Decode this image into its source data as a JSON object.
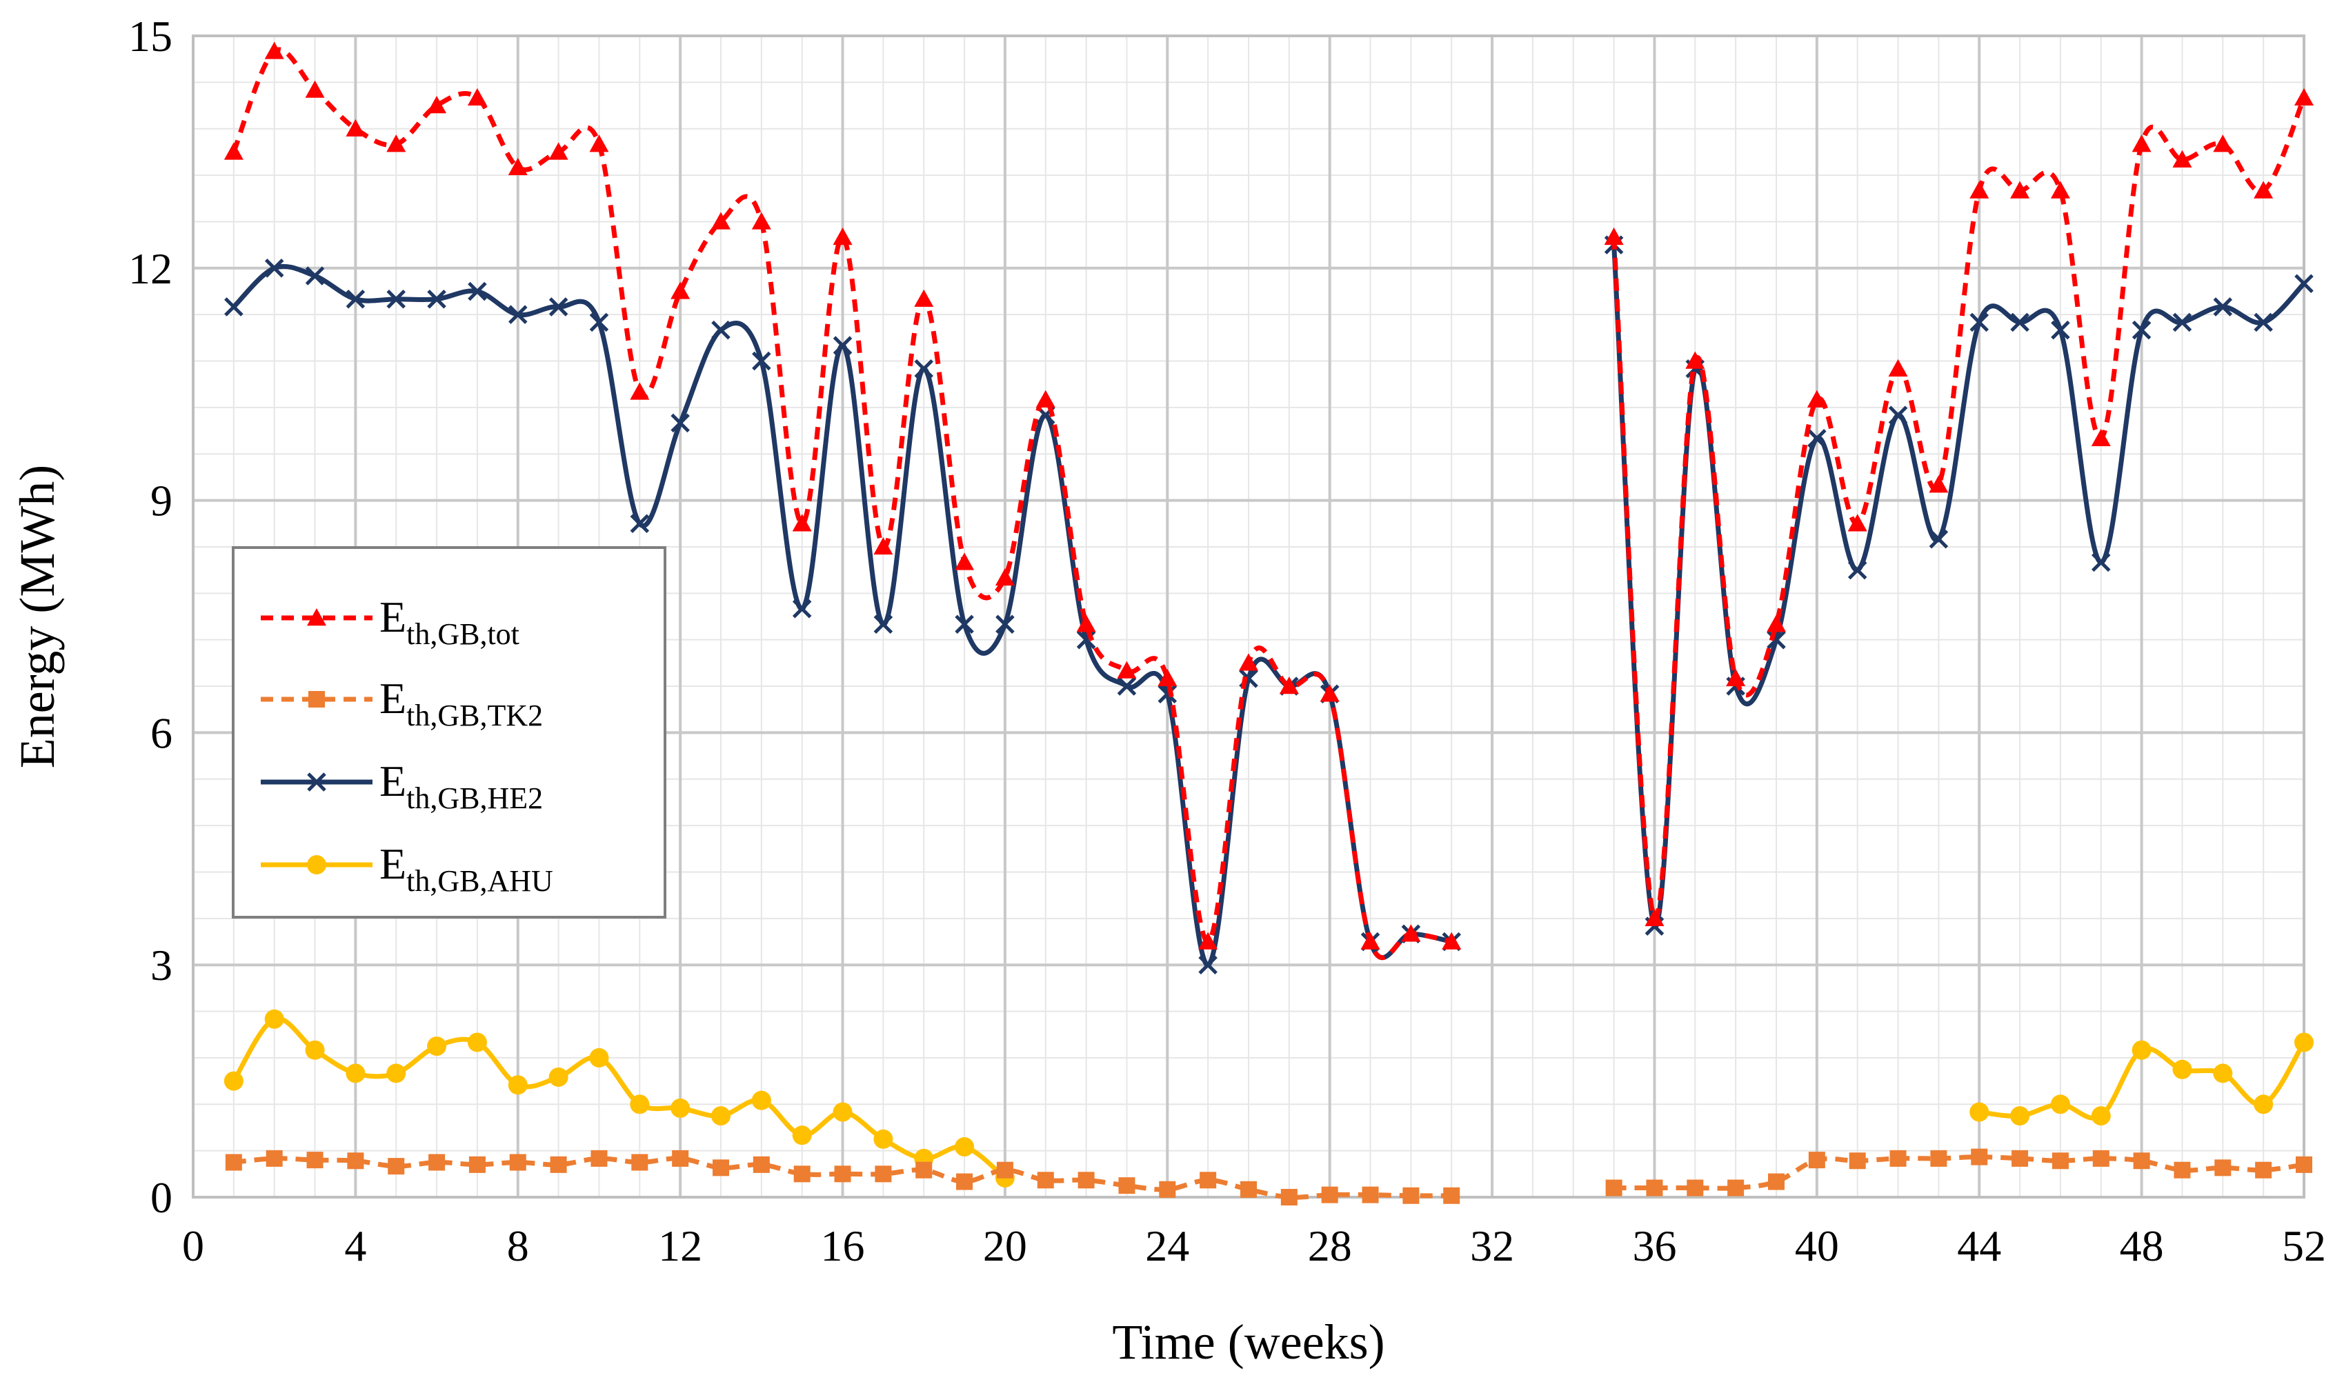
{
  "chart_data": {
    "type": "line",
    "title": "",
    "xlabel": "Time (weeks)",
    "ylabel": "Energy (MWh)",
    "xlim": [
      0,
      52
    ],
    "ylim": [
      0,
      15
    ],
    "xticks": [
      0,
      4,
      8,
      12,
      16,
      20,
      24,
      28,
      32,
      36,
      40,
      44,
      48,
      52
    ],
    "yticks": [
      0,
      3,
      6,
      9,
      12,
      15
    ],
    "x_minor_step": 1,
    "y_minor_step": 0.6,
    "grid": true,
    "legend_position": "middle-left",
    "series": [
      {
        "name": "E_th,GB,tot",
        "legend_main": "E",
        "legend_sub": "th,GB,tot",
        "color": "#ff0000",
        "line": "dashed",
        "marker": "triangle",
        "x": [
          1,
          2,
          3,
          4,
          5,
          6,
          7,
          8,
          9,
          10,
          11,
          12,
          13,
          14,
          15,
          16,
          17,
          18,
          19,
          20,
          21,
          22,
          23,
          24,
          25,
          26,
          27,
          28,
          29,
          30,
          31,
          null,
          35,
          36,
          37,
          38,
          39,
          40,
          41,
          42,
          43,
          44,
          45,
          46,
          47,
          48,
          49,
          50,
          51,
          52
        ],
        "y": [
          13.5,
          14.8,
          14.3,
          13.8,
          13.6,
          14.1,
          14.2,
          13.3,
          13.5,
          13.6,
          10.4,
          11.7,
          12.6,
          12.6,
          8.7,
          12.4,
          8.4,
          11.6,
          8.2,
          8.0,
          10.3,
          7.4,
          6.8,
          6.7,
          3.3,
          6.9,
          6.6,
          6.5,
          3.3,
          3.4,
          3.3,
          null,
          12.4,
          3.6,
          10.8,
          6.7,
          7.4,
          10.3,
          8.7,
          10.7,
          9.2,
          13.0,
          13.0,
          13.0,
          9.8,
          13.6,
          13.4,
          13.6,
          13.0,
          14.2
        ]
      },
      {
        "name": "E_th,GB,TK2",
        "legend_main": "E",
        "legend_sub": "th,GB,TK2",
        "color": "#ed7d31",
        "line": "dashed",
        "marker": "square",
        "x": [
          1,
          2,
          3,
          4,
          5,
          6,
          7,
          8,
          9,
          10,
          11,
          12,
          13,
          14,
          15,
          16,
          17,
          18,
          19,
          20,
          21,
          22,
          23,
          24,
          25,
          26,
          27,
          28,
          29,
          30,
          31,
          null,
          35,
          36,
          37,
          38,
          39,
          40,
          41,
          42,
          43,
          44,
          45,
          46,
          47,
          48,
          49,
          50,
          51,
          52
        ],
        "y": [
          0.45,
          0.5,
          0.48,
          0.47,
          0.4,
          0.45,
          0.42,
          0.45,
          0.42,
          0.5,
          0.45,
          0.5,
          0.38,
          0.42,
          0.3,
          0.3,
          0.3,
          0.35,
          0.2,
          0.35,
          0.22,
          0.22,
          0.15,
          0.1,
          0.22,
          0.1,
          0.0,
          0.03,
          0.03,
          0.02,
          0.02,
          null,
          0.12,
          0.12,
          0.12,
          0.12,
          0.2,
          0.48,
          0.47,
          0.5,
          0.5,
          0.52,
          0.5,
          0.47,
          0.5,
          0.47,
          0.35,
          0.38,
          0.35,
          0.42
        ]
      },
      {
        "name": "E_th,GB,HE2",
        "legend_main": "E",
        "legend_sub": "th,GB,HE2",
        "color": "#1f3864",
        "line": "solid",
        "marker": "x",
        "x": [
          1,
          2,
          3,
          4,
          5,
          6,
          7,
          8,
          9,
          10,
          11,
          12,
          13,
          14,
          15,
          16,
          17,
          18,
          19,
          20,
          21,
          22,
          23,
          24,
          25,
          26,
          27,
          28,
          29,
          30,
          31,
          null,
          35,
          36,
          37,
          38,
          39,
          40,
          41,
          42,
          43,
          44,
          45,
          46,
          47,
          48,
          49,
          50,
          51,
          52
        ],
        "y": [
          11.5,
          12.0,
          11.9,
          11.6,
          11.6,
          11.6,
          11.7,
          11.4,
          11.5,
          11.3,
          8.7,
          10.0,
          11.2,
          10.8,
          7.6,
          11.0,
          7.4,
          10.7,
          7.4,
          7.4,
          10.1,
          7.2,
          6.6,
          6.5,
          3.0,
          6.7,
          6.6,
          6.5,
          3.3,
          3.4,
          3.3,
          null,
          12.3,
          3.5,
          10.7,
          6.6,
          7.2,
          9.8,
          8.1,
          10.1,
          8.5,
          11.3,
          11.3,
          11.2,
          8.2,
          11.2,
          11.3,
          11.5,
          11.3,
          11.8
        ]
      },
      {
        "name": "E_th,GB,AHU",
        "legend_main": "E",
        "legend_sub": "th,GB,AHU",
        "color": "#ffc000",
        "line": "solid",
        "marker": "circle",
        "x": [
          1,
          2,
          3,
          4,
          5,
          6,
          7,
          8,
          9,
          10,
          11,
          12,
          13,
          14,
          15,
          16,
          17,
          18,
          19,
          20,
          null,
          44,
          45,
          46,
          47,
          48,
          49,
          50,
          51,
          52
        ],
        "y": [
          1.5,
          2.3,
          1.9,
          1.6,
          1.6,
          1.95,
          2.0,
          1.45,
          1.55,
          1.8,
          1.2,
          1.15,
          1.05,
          1.25,
          0.8,
          1.1,
          0.75,
          0.5,
          0.65,
          0.25,
          null,
          1.1,
          1.05,
          1.2,
          1.05,
          1.9,
          1.65,
          1.6,
          1.2,
          2.0
        ]
      }
    ]
  }
}
